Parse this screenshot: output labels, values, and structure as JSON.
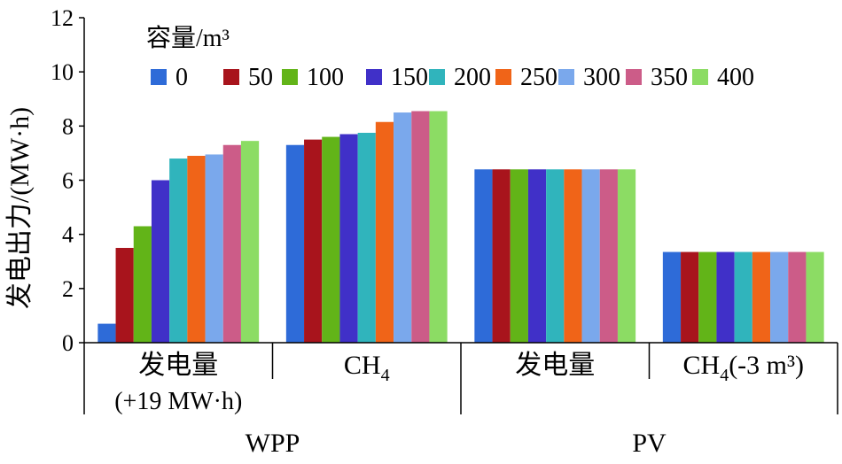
{
  "chart_data": {
    "type": "bar",
    "ylabel": "发电出力/(MW·h)",
    "ylim": [
      0,
      12
    ],
    "yticks": [
      0,
      2,
      4,
      6,
      8,
      10,
      12
    ],
    "legend_title": "容量/m³",
    "legend_placement": "top",
    "categories": [
      "发电量",
      "CH₄",
      "发电量",
      "CH₄(-3 m³)"
    ],
    "category_sublabels": [
      "(+19 MW·h)",
      "",
      "",
      ""
    ],
    "groups": [
      {
        "label": "WPP",
        "span": [
          0,
          1
        ]
      },
      {
        "label": "PV",
        "span": [
          2,
          3
        ]
      }
    ],
    "series": [
      {
        "name": "0",
        "color": "#2e6bd8",
        "values": [
          0.7,
          7.3,
          6.4,
          3.35
        ]
      },
      {
        "name": "50",
        "color": "#a8141c",
        "values": [
          3.5,
          7.5,
          6.4,
          3.35
        ]
      },
      {
        "name": "100",
        "color": "#62b418",
        "values": [
          4.3,
          7.6,
          6.4,
          3.35
        ]
      },
      {
        "name": "150",
        "color": "#4030c8",
        "values": [
          6.0,
          7.7,
          6.4,
          3.35
        ]
      },
      {
        "name": "200",
        "color": "#30b4bc",
        "values": [
          6.8,
          7.75,
          6.4,
          3.35
        ]
      },
      {
        "name": "250",
        "color": "#f06418",
        "values": [
          6.9,
          8.15,
          6.4,
          3.35
        ]
      },
      {
        "name": "300",
        "color": "#7aa8ec",
        "values": [
          6.95,
          8.5,
          6.4,
          3.35
        ]
      },
      {
        "name": "350",
        "color": "#cc5c88",
        "values": [
          7.3,
          8.55,
          6.4,
          3.35
        ]
      },
      {
        "name": "400",
        "color": "#8cdc64",
        "values": [
          7.45,
          8.55,
          6.4,
          3.35
        ]
      }
    ]
  }
}
